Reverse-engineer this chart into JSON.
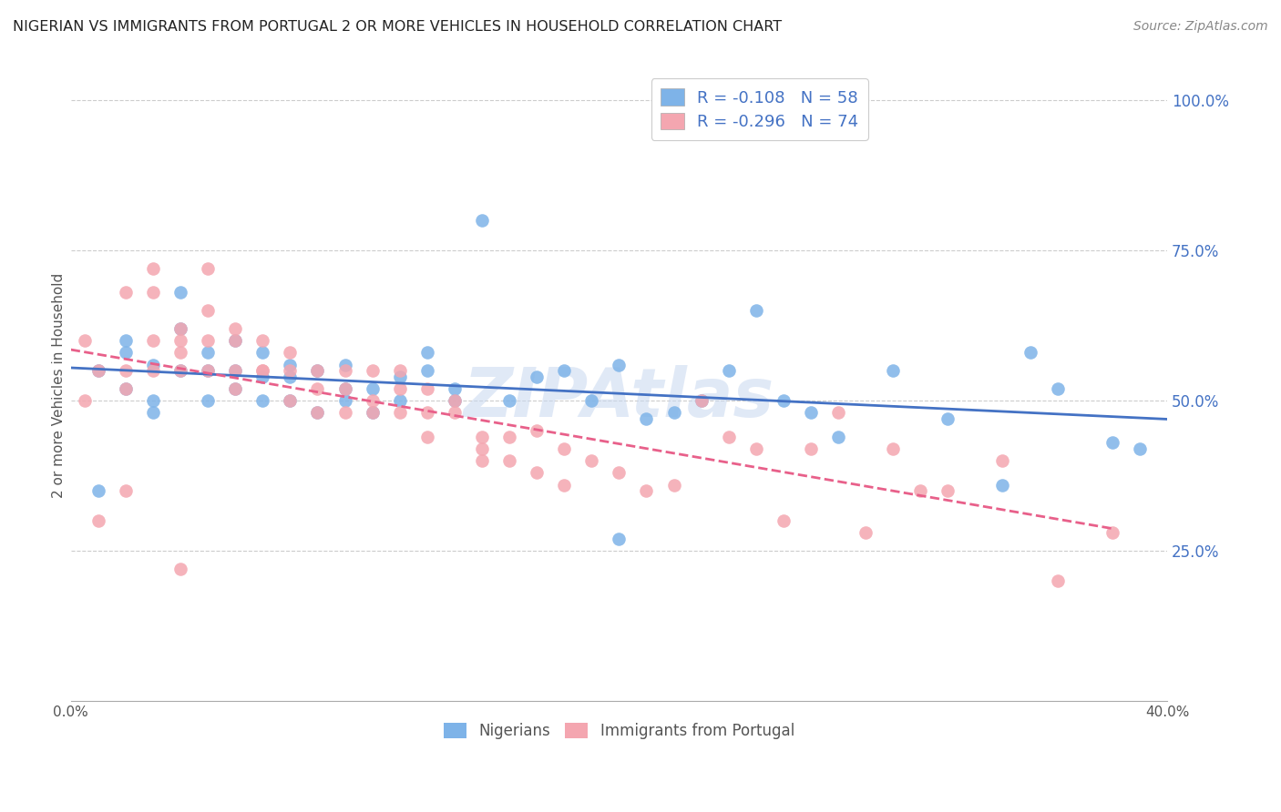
{
  "title": "NIGERIAN VS IMMIGRANTS FROM PORTUGAL 2 OR MORE VEHICLES IN HOUSEHOLD CORRELATION CHART",
  "source": "Source: ZipAtlas.com",
  "ylabel": "2 or more Vehicles in Household",
  "ytick_labels": [
    "25.0%",
    "50.0%",
    "75.0%",
    "100.0%"
  ],
  "ytick_values": [
    0.25,
    0.5,
    0.75,
    1.0
  ],
  "xmin": 0.0,
  "xmax": 0.4,
  "ymin": 0.0,
  "ymax": 1.05,
  "legend_blue_R": -0.108,
  "legend_blue_N": 58,
  "legend_pink_R": -0.296,
  "legend_pink_N": 74,
  "blue_color": "#7EB3E8",
  "pink_color": "#F4A6B0",
  "blue_line_color": "#4472C4",
  "pink_line_color": "#E8608A",
  "watermark": "ZIPAtlas",
  "watermark_color": "#C8D8F0",
  "blue_scatter_x": [
    0.01,
    0.01,
    0.02,
    0.02,
    0.02,
    0.03,
    0.03,
    0.03,
    0.04,
    0.04,
    0.04,
    0.05,
    0.05,
    0.05,
    0.06,
    0.06,
    0.06,
    0.07,
    0.07,
    0.07,
    0.08,
    0.08,
    0.08,
    0.09,
    0.09,
    0.1,
    0.1,
    0.11,
    0.11,
    0.12,
    0.12,
    0.13,
    0.13,
    0.14,
    0.14,
    0.15,
    0.16,
    0.17,
    0.18,
    0.19,
    0.2,
    0.21,
    0.22,
    0.23,
    0.24,
    0.25,
    0.26,
    0.27,
    0.28,
    0.3,
    0.32,
    0.34,
    0.35,
    0.36,
    0.38,
    0.39,
    0.2,
    0.1
  ],
  "blue_scatter_y": [
    0.55,
    0.35,
    0.58,
    0.52,
    0.6,
    0.56,
    0.5,
    0.48,
    0.55,
    0.62,
    0.68,
    0.5,
    0.55,
    0.58,
    0.52,
    0.55,
    0.6,
    0.5,
    0.54,
    0.58,
    0.5,
    0.54,
    0.56,
    0.48,
    0.55,
    0.5,
    0.52,
    0.48,
    0.52,
    0.5,
    0.54,
    0.58,
    0.55,
    0.52,
    0.5,
    0.8,
    0.5,
    0.54,
    0.55,
    0.5,
    0.56,
    0.47,
    0.48,
    0.5,
    0.55,
    0.65,
    0.5,
    0.48,
    0.44,
    0.55,
    0.47,
    0.36,
    0.58,
    0.52,
    0.43,
    0.42,
    0.27,
    0.56
  ],
  "pink_scatter_x": [
    0.005,
    0.005,
    0.01,
    0.01,
    0.02,
    0.02,
    0.02,
    0.03,
    0.03,
    0.03,
    0.03,
    0.04,
    0.04,
    0.04,
    0.04,
    0.05,
    0.05,
    0.05,
    0.05,
    0.06,
    0.06,
    0.06,
    0.06,
    0.07,
    0.07,
    0.07,
    0.08,
    0.08,
    0.08,
    0.09,
    0.09,
    0.09,
    0.1,
    0.1,
    0.1,
    0.11,
    0.11,
    0.11,
    0.12,
    0.12,
    0.12,
    0.13,
    0.13,
    0.13,
    0.14,
    0.14,
    0.15,
    0.15,
    0.15,
    0.16,
    0.16,
    0.17,
    0.17,
    0.18,
    0.18,
    0.19,
    0.2,
    0.21,
    0.22,
    0.23,
    0.24,
    0.25,
    0.26,
    0.27,
    0.28,
    0.29,
    0.3,
    0.31,
    0.32,
    0.34,
    0.36,
    0.38,
    0.02,
    0.04
  ],
  "pink_scatter_y": [
    0.6,
    0.5,
    0.55,
    0.3,
    0.68,
    0.55,
    0.52,
    0.72,
    0.68,
    0.6,
    0.55,
    0.58,
    0.62,
    0.6,
    0.55,
    0.72,
    0.65,
    0.6,
    0.55,
    0.62,
    0.6,
    0.55,
    0.52,
    0.55,
    0.6,
    0.55,
    0.58,
    0.55,
    0.5,
    0.55,
    0.52,
    0.48,
    0.55,
    0.52,
    0.48,
    0.55,
    0.5,
    0.48,
    0.55,
    0.52,
    0.48,
    0.52,
    0.48,
    0.44,
    0.5,
    0.48,
    0.44,
    0.42,
    0.4,
    0.44,
    0.4,
    0.45,
    0.38,
    0.42,
    0.36,
    0.4,
    0.38,
    0.35,
    0.36,
    0.5,
    0.44,
    0.42,
    0.3,
    0.42,
    0.48,
    0.28,
    0.42,
    0.35,
    0.35,
    0.4,
    0.2,
    0.28,
    0.35,
    0.22
  ]
}
